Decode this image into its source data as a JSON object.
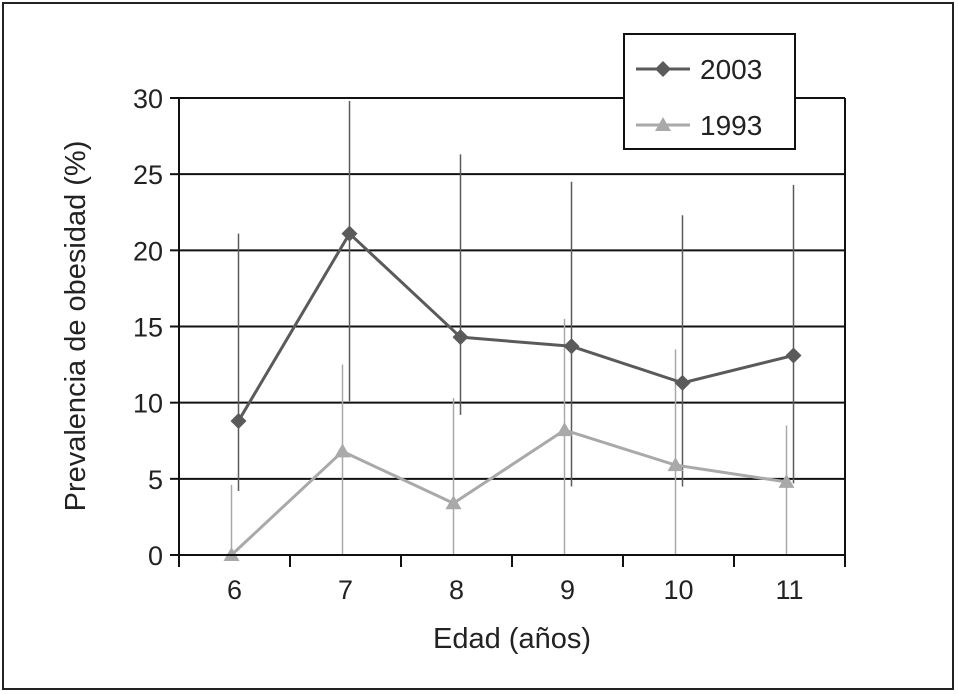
{
  "chart_data": {
    "type": "line",
    "title": "",
    "xlabel": "Edad (años)",
    "ylabel": "Prevalencia de obesidad (%)",
    "categories": [
      "6",
      "7",
      "8",
      "9",
      "10",
      "11"
    ],
    "ylim": [
      0,
      30
    ],
    "yticks": [
      "0",
      "5",
      "10",
      "15",
      "20",
      "25",
      "30"
    ],
    "grid": "horizontal",
    "legend_position": "top-right",
    "series": [
      {
        "name": "2003",
        "marker": "diamond",
        "color": "#5a5a5a",
        "values": [
          8.8,
          21.1,
          14.3,
          13.7,
          11.3,
          13.1
        ],
        "error_upper": [
          21.1,
          29.8,
          26.3,
          24.5,
          22.3,
          24.3
        ],
        "error_lower": [
          4.2,
          10.1,
          9.2,
          4.5,
          4.5,
          4.7
        ]
      },
      {
        "name": "1993",
        "marker": "triangle",
        "color": "#a9a9a9",
        "values": [
          0.0,
          6.8,
          3.4,
          8.2,
          5.9,
          4.8
        ],
        "error_upper": [
          4.6,
          12.5,
          10.3,
          15.5,
          13.5,
          8.5
        ],
        "error_lower": [
          0.0,
          0.0,
          0.0,
          0.0,
          0.0,
          0.0
        ]
      }
    ]
  }
}
